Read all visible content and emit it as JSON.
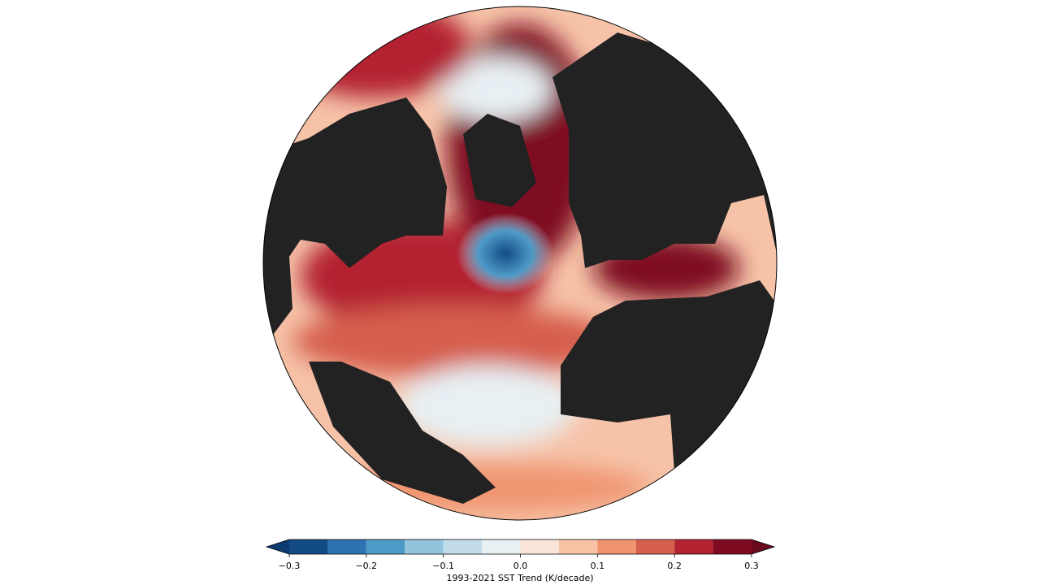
{
  "chart_data": {
    "type": "colorbar",
    "label": "1993-2021 SST Trend (K/decade)",
    "xlim": [
      -0.3,
      0.3
    ],
    "xticks": [
      {
        "value": -0.3,
        "label": "−0.3"
      },
      {
        "value": -0.2,
        "label": "−0.2"
      },
      {
        "value": -0.1,
        "label": "−0.1"
      },
      {
        "value": 0,
        "label": "0.0"
      },
      0.1,
      0.2,
      0.3
    ],
    "bins": [
      -0.3,
      -0.25,
      -0.2,
      -0.15,
      -0.1,
      -0.05,
      0,
      0.05,
      0.1,
      0.15,
      0.2,
      0.25,
      0.3
    ],
    "colors": [
      "#134b86",
      "#2d73b2",
      "#4d9ac7",
      "#92c4de",
      "#c3dceb",
      "#e8f0f4",
      "#fbe5d8",
      "#f8c2a5",
      "#f0946f",
      "#d65f4e",
      "#b42330",
      "#7f0b22"
    ],
    "extend": "both",
    "extend_colors": [
      "#0b3a6e",
      "#6b0a1f"
    ]
  }
}
